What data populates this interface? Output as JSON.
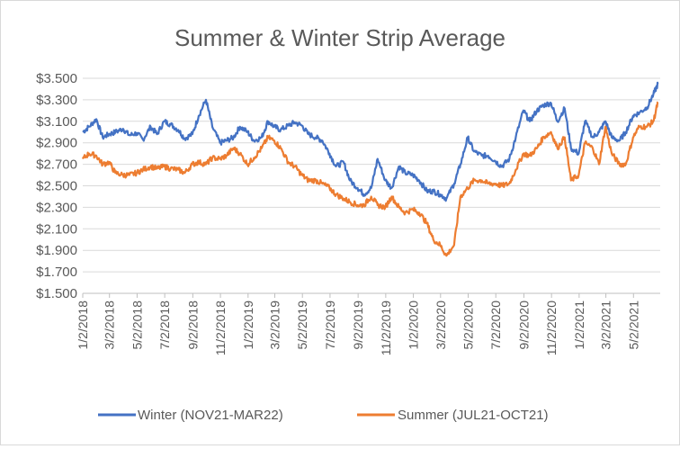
{
  "chart_data": {
    "type": "line",
    "title": "Summer & Winter Strip Average",
    "xlabel": "",
    "ylabel": "",
    "ylim": [
      1.5,
      3.5
    ],
    "yticks": [
      "$1.500",
      "$1.700",
      "$1.900",
      "$2.100",
      "$2.300",
      "$2.500",
      "$2.700",
      "$2.900",
      "$3.100",
      "$3.300",
      "$3.500"
    ],
    "xticks": [
      "1/2/2018",
      "3/2/2018",
      "5/2/2018",
      "7/2/2018",
      "9/2/2018",
      "11/2/2018",
      "1/2/2019",
      "3/2/2019",
      "5/2/2019",
      "7/2/2019",
      "9/2/2019",
      "11/2/2019",
      "1/2/2020",
      "3/2/2020",
      "5/2/2020",
      "7/2/2020",
      "9/2/2020",
      "11/2/2020",
      "1/2/2021",
      "3/2/2021",
      "5/2/2021"
    ],
    "x_dates": [
      "2018-01-02",
      "2018-01-16",
      "2018-02-01",
      "2018-02-15",
      "2018-03-01",
      "2018-03-15",
      "2018-04-01",
      "2018-04-15",
      "2018-05-01",
      "2018-05-15",
      "2018-06-01",
      "2018-06-15",
      "2018-07-01",
      "2018-07-15",
      "2018-08-01",
      "2018-08-15",
      "2018-09-01",
      "2018-09-15",
      "2018-10-01",
      "2018-10-15",
      "2018-11-01",
      "2018-11-15",
      "2018-12-01",
      "2018-12-15",
      "2019-01-01",
      "2019-01-15",
      "2019-02-01",
      "2019-02-15",
      "2019-03-01",
      "2019-03-15",
      "2019-04-01",
      "2019-04-15",
      "2019-05-01",
      "2019-05-15",
      "2019-06-01",
      "2019-06-15",
      "2019-07-01",
      "2019-07-15",
      "2019-08-01",
      "2019-08-15",
      "2019-09-01",
      "2019-09-15",
      "2019-10-01",
      "2019-10-15",
      "2019-11-01",
      "2019-11-15",
      "2019-12-01",
      "2019-12-15",
      "2020-01-01",
      "2020-01-15",
      "2020-02-01",
      "2020-02-15",
      "2020-03-01",
      "2020-03-15",
      "2020-04-01",
      "2020-04-15",
      "2020-05-01",
      "2020-05-15",
      "2020-06-01",
      "2020-06-15",
      "2020-07-01",
      "2020-07-15",
      "2020-08-01",
      "2020-08-15",
      "2020-09-01",
      "2020-09-15",
      "2020-10-01",
      "2020-10-15",
      "2020-11-01",
      "2020-11-15",
      "2020-12-01",
      "2020-12-15",
      "2021-01-01",
      "2021-01-15",
      "2021-02-01",
      "2021-02-15",
      "2021-03-01",
      "2021-03-15",
      "2021-04-01",
      "2021-04-15",
      "2021-05-01",
      "2021-05-15",
      "2021-06-01",
      "2021-06-15",
      "2021-06-25"
    ],
    "series": [
      {
        "name": "Winter (NOV21-MAR22)",
        "color": "#4472c4",
        "values": [
          3.0,
          3.05,
          3.12,
          2.95,
          2.98,
          3.0,
          3.03,
          2.97,
          2.99,
          2.93,
          3.05,
          2.98,
          3.1,
          3.07,
          3.02,
          2.94,
          2.98,
          3.15,
          3.3,
          3.05,
          2.9,
          2.92,
          2.95,
          3.05,
          3.0,
          2.92,
          2.95,
          3.1,
          3.05,
          3.02,
          3.06,
          3.09,
          3.06,
          2.98,
          2.95,
          2.92,
          2.8,
          2.68,
          2.72,
          2.55,
          2.48,
          2.42,
          2.48,
          2.75,
          2.55,
          2.48,
          2.68,
          2.62,
          2.6,
          2.55,
          2.45,
          2.45,
          2.42,
          2.38,
          2.52,
          2.7,
          2.95,
          2.82,
          2.78,
          2.78,
          2.73,
          2.68,
          2.75,
          2.95,
          3.2,
          3.1,
          3.2,
          3.25,
          3.27,
          3.1,
          3.22,
          2.85,
          2.8,
          3.1,
          2.95,
          3.0,
          3.1,
          2.95,
          2.92,
          3.0,
          3.15,
          3.18,
          3.23,
          3.35,
          3.45
        ]
      },
      {
        "name": "Summer  (JUL21-OCT21)",
        "color": "#ed7d31",
        "values": [
          2.75,
          2.8,
          2.78,
          2.7,
          2.72,
          2.62,
          2.6,
          2.6,
          2.62,
          2.65,
          2.68,
          2.66,
          2.68,
          2.66,
          2.65,
          2.62,
          2.7,
          2.72,
          2.7,
          2.76,
          2.75,
          2.78,
          2.85,
          2.8,
          2.7,
          2.76,
          2.85,
          2.95,
          2.92,
          2.85,
          2.72,
          2.68,
          2.6,
          2.55,
          2.55,
          2.52,
          2.48,
          2.42,
          2.38,
          2.35,
          2.32,
          2.32,
          2.4,
          2.32,
          2.3,
          2.4,
          2.3,
          2.25,
          2.28,
          2.25,
          2.15,
          2.0,
          1.95,
          1.85,
          1.95,
          2.4,
          2.48,
          2.55,
          2.55,
          2.52,
          2.52,
          2.5,
          2.52,
          2.65,
          2.8,
          2.78,
          2.85,
          2.95,
          3.0,
          2.85,
          2.95,
          2.55,
          2.6,
          2.9,
          2.85,
          2.7,
          3.05,
          2.8,
          2.7,
          2.7,
          2.95,
          3.05,
          3.05,
          3.1,
          3.28
        ]
      }
    ],
    "legend_position": "bottom",
    "grid": true
  }
}
